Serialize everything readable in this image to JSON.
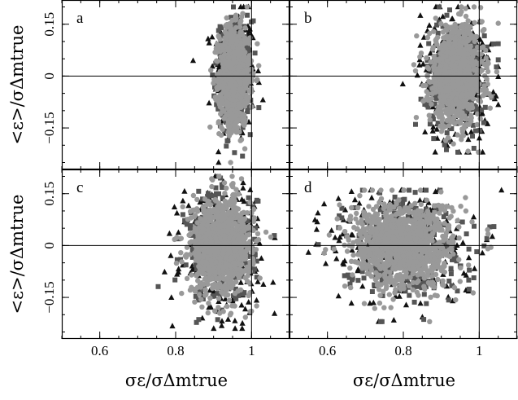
{
  "chart_data": {
    "type": "scatter",
    "layout": "2x2 panels, shared axes",
    "x_axis": {
      "range": [
        0.5,
        1.1
      ],
      "ticks": [
        0.6,
        0.8,
        1
      ],
      "tick_labels": [
        "0.6",
        "0.8",
        "1"
      ]
    },
    "y_axis": {
      "range": [
        -0.27,
        0.22
      ],
      "ticks": [
        -0.15,
        0,
        0.15
      ],
      "tick_labels": [
        "−0.15",
        "0",
        "0.15"
      ]
    },
    "reference_lines": {
      "x": 1,
      "y": 0
    },
    "xlabel": "σε/σΔmtrue",
    "ylabel": "<ε>/σΔmtrue",
    "marker_colors": {
      "triangle": "#111111",
      "square": "#555555",
      "circle": "#999999"
    },
    "panels": [
      {
        "label": "a",
        "cluster": {
          "x_center": 0.955,
          "x_sd": 0.02,
          "y_center": 0.0,
          "y_sd": 0.07,
          "x_min": 0.84,
          "x_max": 1.07,
          "y_min": -0.25,
          "y_max": 0.2
        }
      },
      {
        "label": "b",
        "cluster": {
          "x_center": 0.94,
          "x_sd": 0.035,
          "y_center": 0.0,
          "y_sd": 0.07,
          "x_min": 0.77,
          "x_max": 1.05,
          "y_min": -0.22,
          "y_max": 0.2
        }
      },
      {
        "label": "c",
        "cluster": {
          "x_center": 0.92,
          "x_sd": 0.04,
          "y_center": 0.0,
          "y_sd": 0.07,
          "x_min": 0.7,
          "x_max": 1.1,
          "y_min": -0.24,
          "y_max": 0.2
        }
      },
      {
        "label": "d",
        "cluster": {
          "x_center": 0.8,
          "x_sd": 0.07,
          "y_center": 0.0,
          "y_sd": 0.065,
          "x_min": 0.55,
          "x_max": 1.06,
          "y_min": -0.22,
          "y_max": 0.16
        }
      }
    ]
  }
}
